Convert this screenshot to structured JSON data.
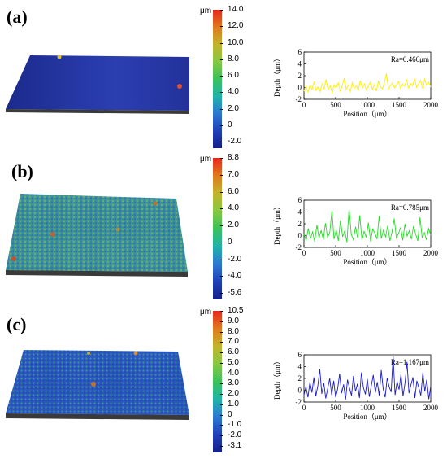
{
  "figure": {
    "panels": [
      {
        "label": "(a)",
        "colorbar": {
          "unit": "μm",
          "ticks": [
            "14.0",
            "12.0",
            "10.0",
            "8.0",
            "6.0",
            "4.0",
            "2.0",
            "0",
            "-2.0"
          ],
          "colors": [
            "#e8281e",
            "#e07a1c",
            "#c2b42a",
            "#86c840",
            "#3ac25c",
            "#1eb4a8",
            "#2a78d2",
            "#2040b8",
            "#14208a"
          ]
        },
        "surface_color": "#2233a8"
      },
      {
        "label": "(b)",
        "colorbar": {
          "unit": "μm",
          "ticks": [
            "8.8",
            "7.0",
            "6.0",
            "4.0",
            "2.0",
            "0",
            "-2.0",
            "-4.0",
            "-5.6"
          ],
          "colors": [
            "#e8281e",
            "#e07a1c",
            "#c2b42a",
            "#86c840",
            "#3ac25c",
            "#1eb4a8",
            "#2a78d2",
            "#2040b8",
            "#14208a"
          ]
        },
        "surface_color": "#3a9a8a"
      },
      {
        "label": "(c)",
        "colorbar": {
          "unit": "μm",
          "ticks": [
            "10.5",
            "9.0",
            "8.0",
            "7.0",
            "6.0",
            "5.0",
            "4.0",
            "3.0",
            "2.0",
            "1.0",
            "0",
            "-1.0",
            "-2.0",
            "-3.1"
          ],
          "colors": [
            "#e8281e",
            "#e07a1c",
            "#c2b42a",
            "#86c840",
            "#3ac25c",
            "#1eb4a8",
            "#2a78d2",
            "#2040b8",
            "#14208a"
          ]
        },
        "surface_color": "#2f5cc0"
      }
    ]
  },
  "chart_data": [
    {
      "type": "line",
      "title": "",
      "annotation": "Ra=0.466μm",
      "xlabel": "Position（μm）",
      "ylabel": "Depth（μm）",
      "xlim": [
        0,
        2000
      ],
      "ylim": [
        -2,
        6
      ],
      "xticks": [
        "0",
        "500",
        "1000",
        "1500",
        "2000"
      ],
      "yticks": [
        "-2",
        "0",
        "2",
        "4",
        "6"
      ],
      "color": "#ffee00",
      "series": [
        {
          "x_range": [
            0,
            2000
          ],
          "values": [
            -0.6,
            0.2,
            -0.8,
            0.4,
            -0.3,
            0.9,
            -0.5,
            0.1,
            -0.7,
            0.6,
            -0.2,
            1.4,
            -0.4,
            0.3,
            -0.9,
            0.5,
            -0.1,
            0.8,
            -0.6,
            0.2,
            1.6,
            -0.3,
            0.4,
            -0.7,
            0.9,
            -0.2,
            0.3,
            -0.5,
            1.2,
            -0.1,
            0.6,
            -0.4,
            0.2,
            0.9,
            -0.3,
            0.5,
            -0.6,
            1.1,
            0.1,
            -0.2,
            0.7,
            2.4,
            -0.3,
            0.4,
            0.8,
            -0.1,
            0.5,
            1.0,
            -0.2,
            0.6,
            0.2,
            1.3,
            -0.1,
            0.7,
            0.3,
            1.5,
            0.0,
            0.6,
            1.2,
            -0.2,
            1.4,
            0.4,
            0.9,
            0.1
          ]
        }
      ]
    },
    {
      "type": "line",
      "title": "",
      "annotation": "Ra=0.785μm",
      "xlabel": "Position（μm）",
      "ylabel": "Depth（μm）",
      "xlim": [
        0,
        2000
      ],
      "ylim": [
        -2,
        6
      ],
      "xticks": [
        "0",
        "500",
        "1000",
        "1500",
        "2000"
      ],
      "yticks": [
        "-2",
        "0",
        "2",
        "4",
        "6"
      ],
      "color": "#22dd22",
      "series": [
        {
          "x_range": [
            0,
            2000
          ],
          "values": [
            0.3,
            -0.8,
            1.2,
            -0.5,
            0.6,
            -1.0,
            1.8,
            -0.4,
            0.9,
            -0.7,
            2.1,
            -0.3,
            0.5,
            4.2,
            -0.6,
            1.0,
            -0.9,
            2.6,
            -0.2,
            0.8,
            -1.1,
            4.6,
            0.2,
            -0.7,
            1.5,
            -0.4,
            3.4,
            -0.8,
            0.7,
            -0.3,
            2.2,
            -1.0,
            1.1,
            0.4,
            -0.6,
            3.3,
            -0.5,
            0.9,
            -0.2,
            1.7,
            -0.9,
            0.6,
            2.9,
            -0.4,
            0.3,
            1.4,
            -0.8,
            2.0,
            -0.1,
            0.8,
            -0.6,
            1.6,
            0.2,
            -0.9,
            3.1,
            -0.3,
            0.5,
            -0.7,
            1.2,
            0.1
          ]
        }
      ]
    },
    {
      "type": "line",
      "title": "",
      "annotation": "Ra=1.167μm",
      "xlabel": "Position（μm）",
      "ylabel": "Depth（μm）",
      "xlim": [
        0,
        2000
      ],
      "ylim": [
        -2,
        6
      ],
      "xticks": [
        "0",
        "500",
        "1000",
        "1500",
        "2000"
      ],
      "yticks": [
        "-2",
        "0",
        "2",
        "4",
        "6"
      ],
      "color": "#1a1acc",
      "series": [
        {
          "x_range": [
            0,
            2000
          ],
          "values": [
            -0.8,
            0.6,
            -1.2,
            1.4,
            -0.4,
            2.2,
            -1.0,
            0.8,
            3.6,
            -0.6,
            1.2,
            -1.4,
            0.4,
            2.0,
            -0.8,
            1.6,
            -1.2,
            0.2,
            2.8,
            -0.5,
            1.0,
            -1.6,
            1.8,
            0.3,
            -0.9,
            2.4,
            -0.2,
            1.1,
            -1.3,
            3.0,
            0.5,
            -0.7,
            1.9,
            -1.1,
            0.8,
            2.6,
            -0.4,
            1.4,
            -0.9,
            3.4,
            0.2,
            -1.2,
            2.1,
            0.6,
            -0.3,
            5.8,
            -0.8,
            1.5,
            0.1,
            2.7,
            -1.0,
            1.2,
            4.8,
            -0.5,
            0.9,
            2.2,
            -1.3,
            1.6,
            0.4,
            -0.9,
            3.0,
            -0.2,
            1.8,
            -1.5,
            0.7
          ]
        }
      ]
    }
  ]
}
